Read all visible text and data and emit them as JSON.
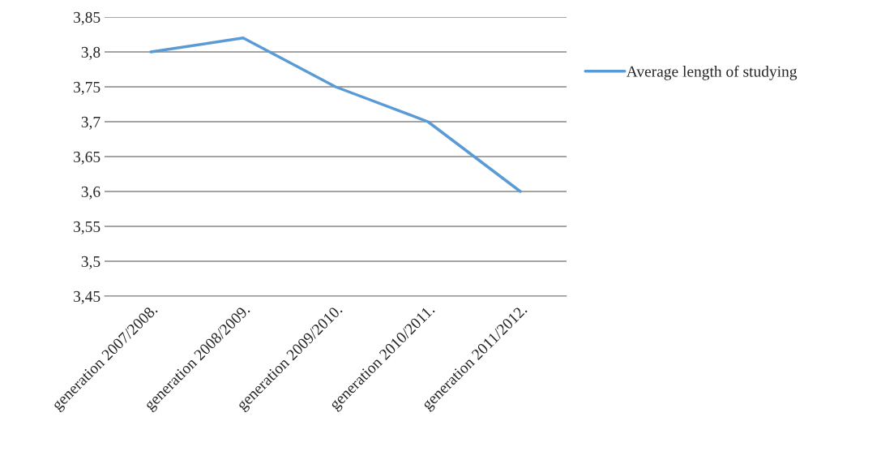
{
  "chart_data": {
    "type": "line",
    "categories": [
      "generation 2007/2008.",
      "generation 2008/2009.",
      "generation 2009/2010.",
      "generation 2010/2011.",
      "generation 2011/2012."
    ],
    "series": [
      {
        "name": "Average length of studying",
        "color": "#5b9bd5",
        "values": [
          3.8,
          3.82,
          3.75,
          3.7,
          3.6
        ]
      }
    ],
    "ylim": [
      3.45,
      3.85
    ],
    "yticks": [
      {
        "value": 3.45,
        "label": "3,45"
      },
      {
        "value": 3.5,
        "label": "3,5"
      },
      {
        "value": 3.55,
        "label": "3,55"
      },
      {
        "value": 3.6,
        "label": "3,6"
      },
      {
        "value": 3.65,
        "label": "3,65"
      },
      {
        "value": 3.7,
        "label": "3,7"
      },
      {
        "value": 3.75,
        "label": "3,75"
      },
      {
        "value": 3.8,
        "label": "3,8"
      },
      {
        "value": 3.85,
        "label": "3,85"
      }
    ],
    "grid": "y",
    "legend": "right",
    "marker": "none",
    "line_style": "solid"
  }
}
